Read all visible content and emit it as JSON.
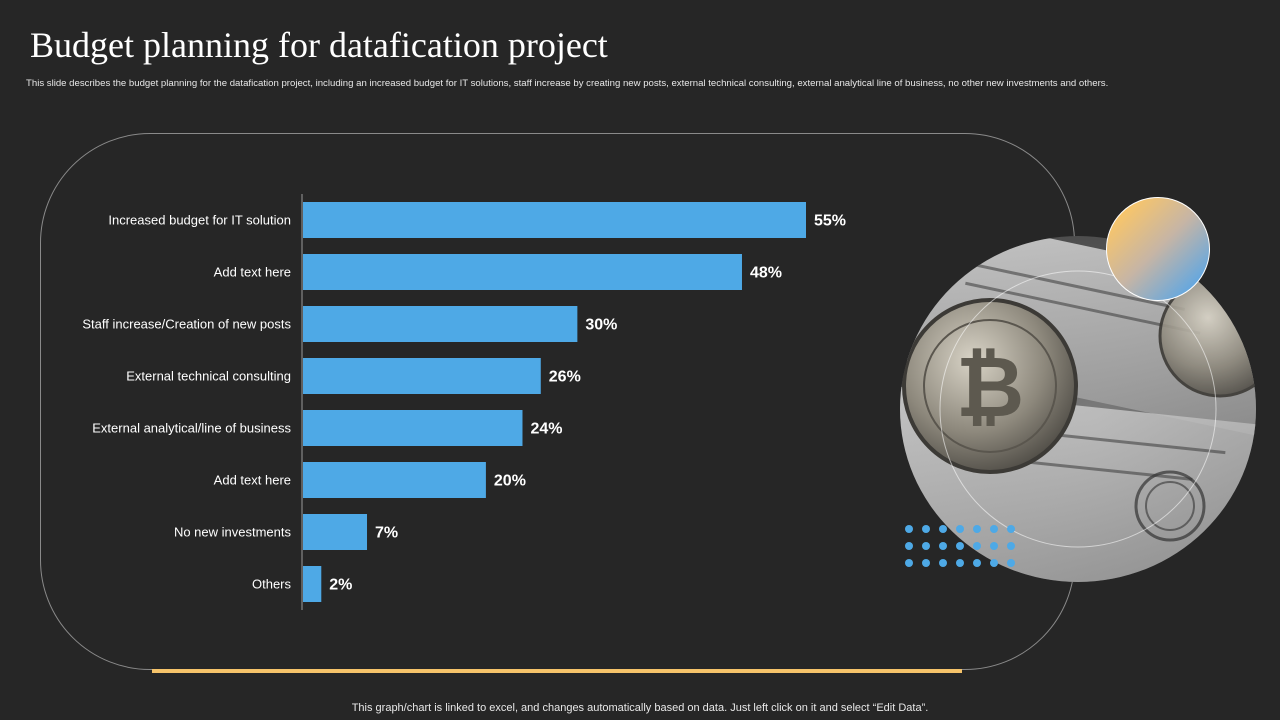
{
  "title": "Budget planning for datafication project",
  "subtitle": "This slide describes the budget planning  for the datafication project, including  an increased budget for IT solutions, staff increase by creating new posts, external technical consulting, external analytical line of business, no other new investments and others.",
  "footer": "This graph/chart is linked to excel,  and changes automatically based on data. Just left click on it and select “Edit Data”.",
  "colors": {
    "background": "#262626",
    "bar": "#4ea9e6",
    "accent_line": "#f5c36a"
  },
  "chart_data": {
    "type": "bar",
    "orientation": "horizontal",
    "categories": [
      "Increased budget for IT solution",
      "Add text here",
      "Staff increase/Creation of new posts",
      "External technical consulting",
      "External analytical/line of business",
      "Add text here",
      "No new investments",
      "Others"
    ],
    "values": [
      55,
      48,
      30,
      26,
      24,
      20,
      7,
      2
    ],
    "value_labels": [
      "55%",
      "48%",
      "30%",
      "26%",
      "24%",
      "20%",
      "7%",
      "2%"
    ],
    "xlim": [
      0,
      60
    ],
    "unit": "%",
    "grid": false
  }
}
